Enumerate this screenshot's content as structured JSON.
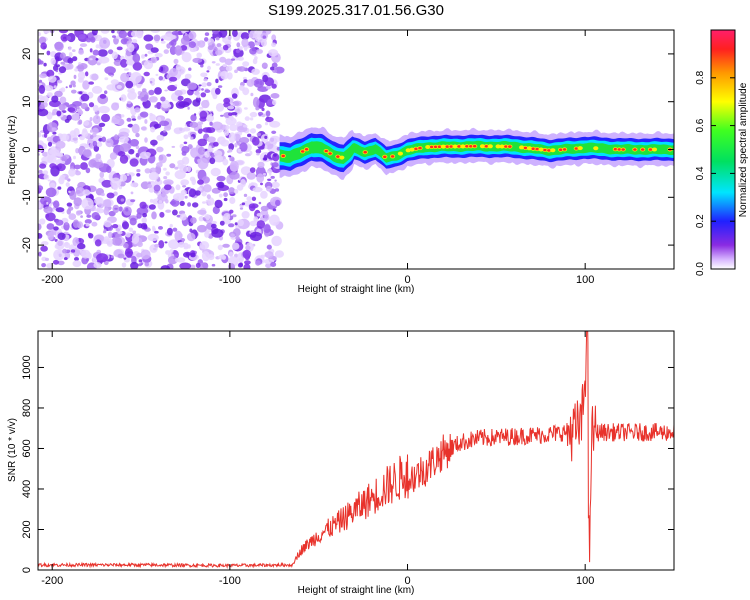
{
  "chart_data": [
    {
      "type": "heatmap",
      "title": "S199.2025.317.01.56.G30",
      "xlabel": "Height of straight line (km)",
      "ylabel": "Frequency (Hz)",
      "xlim": [
        -208,
        150
      ],
      "ylim": [
        -25,
        25
      ],
      "x_ticks": [
        -200,
        -100,
        0,
        100
      ],
      "y_ticks": [
        -20,
        -10,
        0,
        10,
        20
      ],
      "noise_region_x": [
        -208,
        -72
      ],
      "ridge": {
        "description": "narrow-band signal near 0 Hz",
        "x": [
          -72,
          -66,
          -60,
          -54,
          -48,
          -42,
          -36,
          -30,
          -24,
          -18,
          -12,
          -6,
          0,
          10,
          20,
          40,
          60,
          80,
          95,
          100,
          120,
          150
        ],
        "freq": [
          -1.2,
          -1.6,
          -0.6,
          0.6,
          0.2,
          -1.2,
          -1.8,
          0.2,
          -0.6,
          0.2,
          -1.8,
          -1.2,
          -0.2,
          0.5,
          0.6,
          0.7,
          0.6,
          -0.2,
          0.2,
          0.4,
          0.0,
          0.0
        ]
      },
      "colorbar": {
        "label": "Normalized spectral amplitude",
        "range": [
          0,
          1
        ],
        "ticks": [
          0.0,
          0.2,
          0.4,
          0.6,
          0.8
        ],
        "tick_labels": [
          "0.0",
          "0.2",
          "0.4",
          "0.6",
          "0.8"
        ]
      }
    },
    {
      "type": "line",
      "xlabel": "Height of straight line (km)",
      "ylabel": "SNR (10 * v/v)",
      "xlim": [
        -208,
        150
      ],
      "ylim": [
        0,
        1180
      ],
      "x_ticks": [
        -200,
        -100,
        0,
        100
      ],
      "y_ticks": [
        0,
        200,
        400,
        600,
        800,
        1000
      ],
      "color": "#e8322b",
      "series": [
        {
          "name": "SNR",
          "x": [
            -208,
            -150,
            -100,
            -65,
            -60,
            -50,
            -40,
            -30,
            -20,
            -10,
            0,
            10,
            20,
            30,
            40,
            60,
            80,
            95,
            98,
            100,
            101,
            102,
            104,
            110,
            130,
            150
          ],
          "values": [
            25,
            25,
            22,
            25,
            90,
            160,
            210,
            270,
            330,
            390,
            440,
            500,
            580,
            630,
            650,
            660,
            670,
            690,
            720,
            950,
            1180,
            130,
            680,
            680,
            680,
            680
          ]
        }
      ]
    }
  ]
}
